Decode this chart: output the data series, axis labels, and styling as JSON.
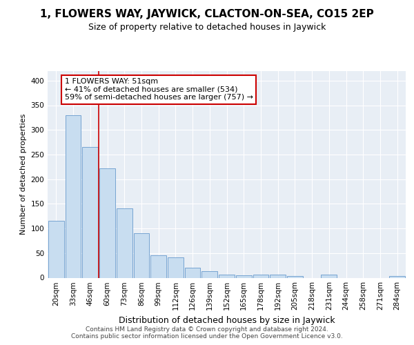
{
  "title1": "1, FLOWERS WAY, JAYWICK, CLACTON-ON-SEA, CO15 2EP",
  "title2": "Size of property relative to detached houses in Jaywick",
  "xlabel": "Distribution of detached houses by size in Jaywick",
  "ylabel": "Number of detached properties",
  "categories": [
    "20sqm",
    "33sqm",
    "46sqm",
    "60sqm",
    "73sqm",
    "86sqm",
    "99sqm",
    "112sqm",
    "126sqm",
    "139sqm",
    "152sqm",
    "165sqm",
    "178sqm",
    "192sqm",
    "205sqm",
    "218sqm",
    "231sqm",
    "244sqm",
    "258sqm",
    "271sqm",
    "284sqm"
  ],
  "values": [
    115,
    330,
    265,
    222,
    141,
    90,
    45,
    41,
    20,
    13,
    6,
    5,
    7,
    7,
    3,
    0,
    7,
    0,
    0,
    0,
    4
  ],
  "bar_color": "#c8ddf0",
  "bar_edge_color": "#6699cc",
  "ylim": [
    0,
    420
  ],
  "yticks": [
    0,
    50,
    100,
    150,
    200,
    250,
    300,
    350,
    400
  ],
  "vline_x": 2.5,
  "annotation_line1": "1 FLOWERS WAY: 51sqm",
  "annotation_line2": "← 41% of detached houses are smaller (534)",
  "annotation_line3": "59% of semi-detached houses are larger (757) →",
  "annotation_box_color": "#ffffff",
  "annotation_box_edge_color": "#cc0000",
  "vline_color": "#cc0000",
  "footer": "Contains HM Land Registry data © Crown copyright and database right 2024.\nContains public sector information licensed under the Open Government Licence v3.0.",
  "background_color": "#ffffff",
  "plot_background_color": "#e8eef5",
  "grid_color": "#ffffff",
  "title1_fontsize": 11,
  "title2_fontsize": 9,
  "xlabel_fontsize": 9,
  "ylabel_fontsize": 8,
  "tick_fontsize": 7.5,
  "annotation_fontsize": 8,
  "footer_fontsize": 6.5
}
